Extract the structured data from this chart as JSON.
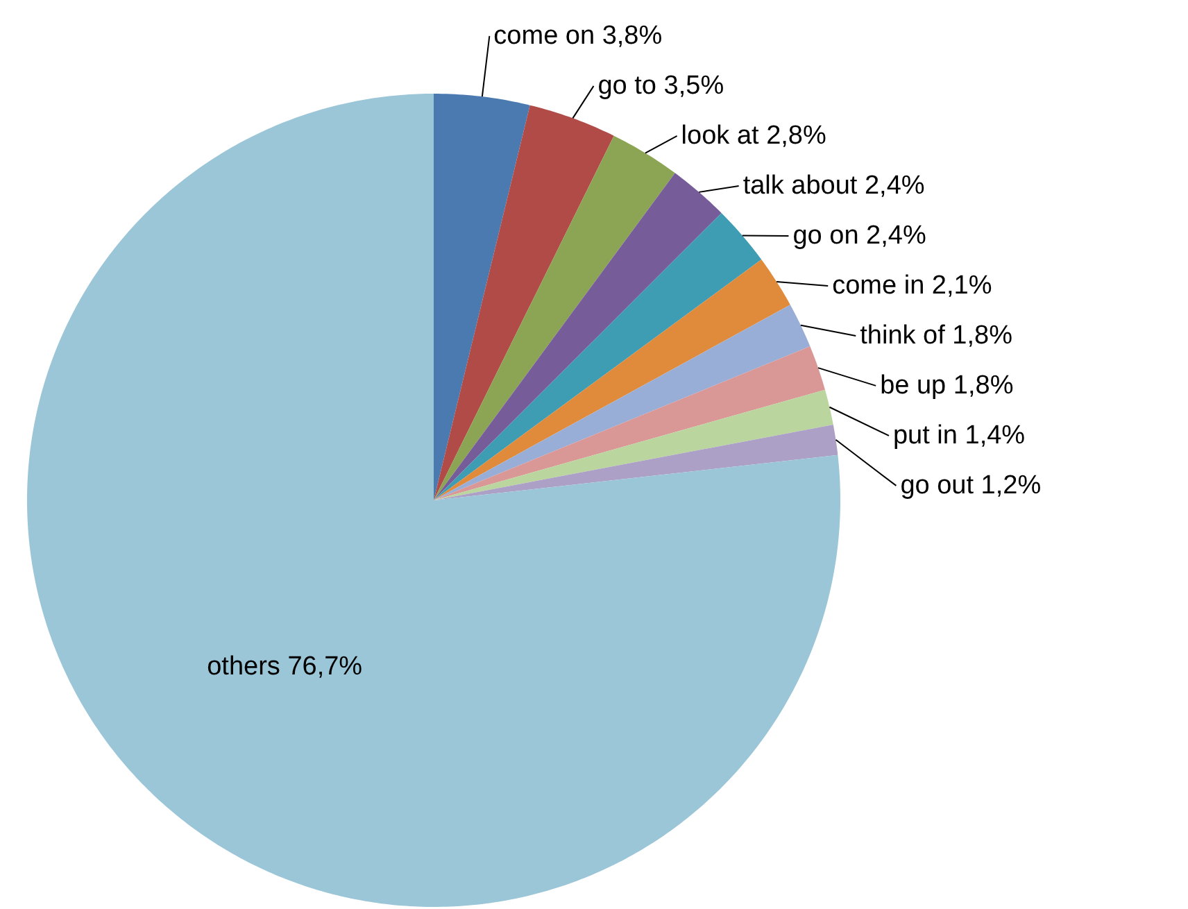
{
  "chart_data": {
    "type": "pie",
    "categories": [
      "come on",
      "go to",
      "look at",
      "talk about",
      "go on",
      "come in",
      "think of",
      "be up",
      "put in",
      "go out",
      "others"
    ],
    "values": [
      3.8,
      3.5,
      2.8,
      2.4,
      2.4,
      2.1,
      1.8,
      1.8,
      1.4,
      1.2,
      76.7
    ],
    "value_labels": [
      "3,8%",
      "3,5%",
      "2,8%",
      "2,4%",
      "2,4%",
      "2,1%",
      "1,8%",
      "1,8%",
      "1,4%",
      "1,2%",
      "76,7%"
    ],
    "colors": [
      "#4a7ab0",
      "#b04b48",
      "#8ca554",
      "#765c99",
      "#3e9db3",
      "#e08b3c",
      "#98aed6",
      "#d99796",
      "#bad59e",
      "#aca0c6",
      "#9bc6d8"
    ]
  }
}
